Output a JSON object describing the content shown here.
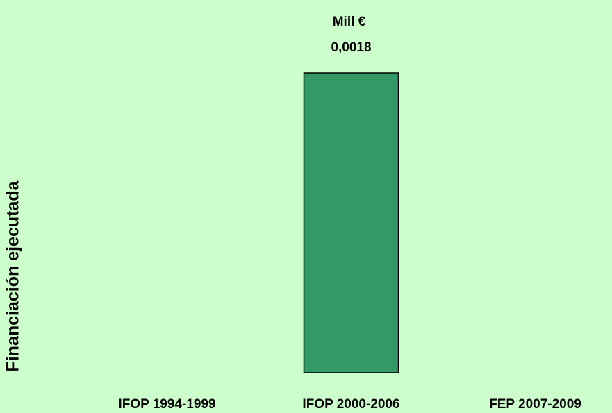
{
  "chart_data": {
    "type": "bar",
    "annotation": "Mill €",
    "ylabel": "Financiación ejecutada",
    "categories": [
      "IFOP 1994-1999",
      "IFOP 2000-2006",
      "FEP 2007-2009"
    ],
    "values": [
      0,
      0.0018,
      0
    ],
    "value_labels": [
      null,
      "0,0018",
      null
    ],
    "color": "#339966",
    "ylim": [
      0,
      0.0018
    ]
  }
}
